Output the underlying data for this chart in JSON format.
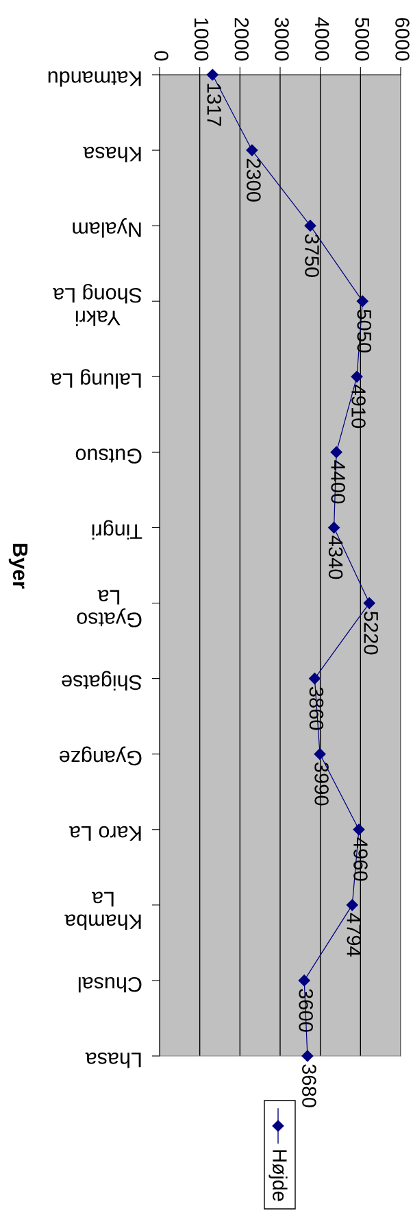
{
  "chart_data": {
    "type": "line",
    "ylabel": "Byer",
    "categories": [
      "Katmandu",
      "Khasa",
      "Nyalam",
      "Yakri\nShong La",
      "Lalung La",
      "Gutsuo",
      "Tingri",
      "Gyatso\nLa",
      "Shigatse",
      "Gyangze",
      "Karo La",
      "Khamba\nLa",
      "Chusal",
      "Lhasa"
    ],
    "series": [
      {
        "name": "Højde",
        "color": "#000080",
        "values": [
          1317,
          2300,
          3750,
          5050,
          4910,
          4400,
          4340,
          5220,
          3860,
          3990,
          4960,
          4794,
          3600,
          3680
        ]
      }
    ],
    "orientation": "horizontal",
    "xlim": [
      0,
      6000
    ],
    "xticks": [
      0,
      1000,
      2000,
      3000,
      4000,
      5000,
      6000
    ],
    "grid": "x",
    "legend": "bottom",
    "marker": "diamond",
    "line_style": "solid",
    "data_labels": true
  }
}
